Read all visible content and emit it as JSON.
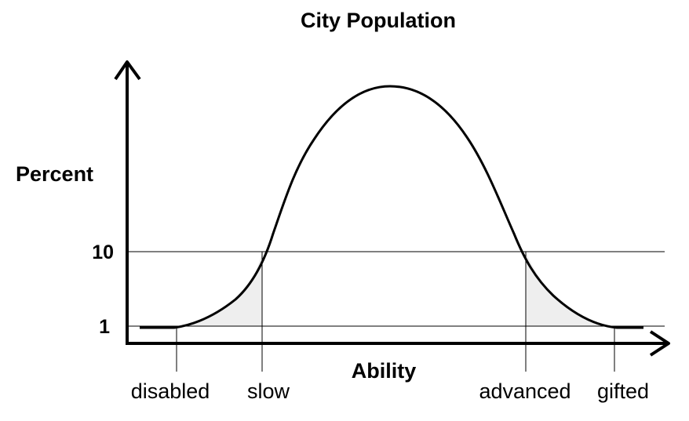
{
  "chart_data": {
    "type": "line",
    "title": "City Population",
    "xlabel": "Ability",
    "ylabel": "Percent",
    "y_ticks": [
      "10",
      "1"
    ],
    "x_markers": [
      "disabled",
      "slow",
      "advanced",
      "gifted"
    ],
    "reference_lines": [
      {
        "label": "10",
        "value": 10
      },
      {
        "label": "1",
        "value": 1
      }
    ],
    "shaded_regions": [
      "slow-tail",
      "advanced-tail"
    ],
    "grid": false,
    "legend": "none",
    "colors": {
      "curve": "#000000",
      "shade": "#eeeeee",
      "line": "#000000"
    }
  }
}
